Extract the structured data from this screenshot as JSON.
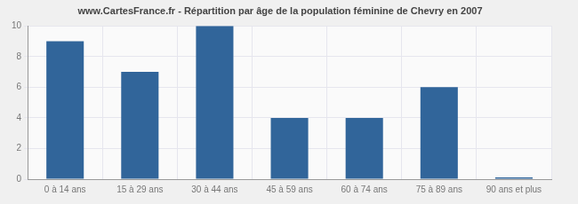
{
  "chart_data": {
    "type": "bar",
    "title": "www.CartesFrance.fr - Répartition par âge de la population féminine de Chevry en 2007",
    "categories": [
      "0 à 14 ans",
      "15 à 29 ans",
      "30 à 44 ans",
      "45 à 59 ans",
      "60 à 74 ans",
      "75 à 89 ans",
      "90 ans et plus"
    ],
    "values": [
      9,
      7,
      10,
      4,
      4,
      6,
      0
    ],
    "color": "#31659a",
    "ylim": [
      0,
      10
    ],
    "yticks": [
      0,
      2,
      4,
      6,
      8,
      10
    ],
    "grid": true
  }
}
